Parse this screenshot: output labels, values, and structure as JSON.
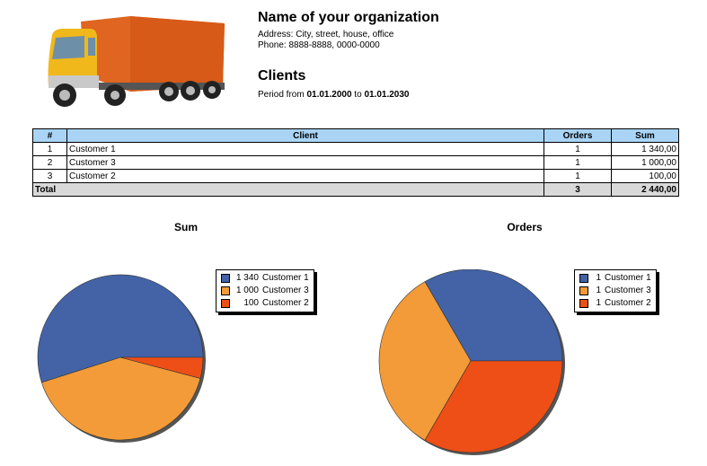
{
  "header": {
    "org_name": "Name of your organization",
    "address": "Address: City, street, house, office",
    "phone": "Phone: 8888-8888, 0000-0000",
    "report_title": "Clients",
    "period_prefix": "Period from ",
    "period_from": "01.01.2000",
    "period_mid": " to ",
    "period_to": "01.01.2030"
  },
  "table": {
    "headers": [
      "#",
      "Client",
      "Orders",
      "Sum"
    ],
    "rows": [
      {
        "num": "1",
        "client": "Customer 1",
        "orders": "1",
        "sum": "1 340,00"
      },
      {
        "num": "2",
        "client": "Customer 3",
        "orders": "1",
        "sum": "1 000,00"
      },
      {
        "num": "3",
        "client": "Customer 2",
        "orders": "1",
        "sum": "100,00"
      }
    ],
    "total": {
      "label": "Total",
      "orders": "3",
      "sum": "2 440,00"
    }
  },
  "colors": {
    "customer1": "#4363a6",
    "customer3": "#f29b38",
    "customer2": "#ee4f16",
    "header_bg": "#a9d4f5",
    "truck_body": "#e06520",
    "truck_cab": "#f0b81a"
  },
  "chart_data": [
    {
      "type": "pie",
      "title": "Sum",
      "categories": [
        "Customer 1",
        "Customer 3",
        "Customer 2"
      ],
      "values": [
        1340,
        1000,
        100
      ],
      "value_labels": [
        "1 340",
        "1 000",
        "100"
      ],
      "legend": "right"
    },
    {
      "type": "pie",
      "title": "Orders",
      "categories": [
        "Customer 1",
        "Customer 3",
        "Customer 2"
      ],
      "values": [
        1,
        1,
        1
      ],
      "value_labels": [
        "1",
        "1",
        "1"
      ],
      "legend": "right"
    }
  ]
}
